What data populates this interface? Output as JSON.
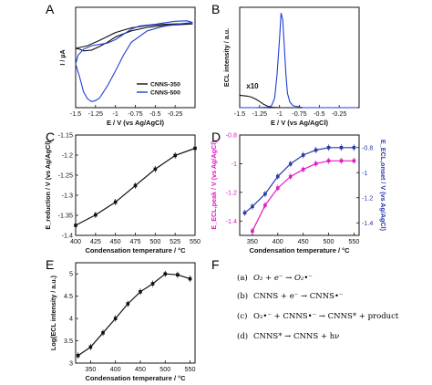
{
  "panels": {
    "A": {
      "letter": "A"
    },
    "B": {
      "letter": "B"
    },
    "C": {
      "letter": "C"
    },
    "D": {
      "letter": "D"
    },
    "E": {
      "letter": "E"
    },
    "F": {
      "letter": "F"
    }
  },
  "colors": {
    "black": "#111111",
    "blue": "#1f3fd6",
    "magenta": "#e01cc4",
    "navy": "#2b3aa8"
  },
  "chart_data": [
    {
      "id": "A",
      "type": "line",
      "xlabel": "E / V (vs Ag/AgCl)",
      "ylabel": "I / µA",
      "xlim": [
        -1.5,
        0
      ],
      "xticks": [
        "-1.5",
        "-1.25",
        "-1",
        "-0.75",
        "-0.5",
        "-0.25"
      ],
      "xtick_values": [
        -1.5,
        -1.25,
        -1.0,
        -0.75,
        -0.5,
        -0.25
      ],
      "grid": false,
      "legend_position": "bottom-right",
      "series": [
        {
          "name": "CNNS-350",
          "color": "#111111",
          "x": [
            -1.5,
            -1.45,
            -1.4,
            -1.3,
            -1.2,
            -1.1,
            -1.0,
            -0.8,
            -0.6,
            -0.4,
            -0.2,
            -0.03,
            -0.2,
            -0.4,
            -0.6,
            -0.8,
            -1.0,
            -1.2,
            -1.35,
            -1.45,
            -1.5
          ],
          "y": [
            -2.2,
            -2.3,
            -2.5,
            -2.4,
            -2.0,
            -1.5,
            -0.9,
            -0.2,
            0.2,
            0.4,
            0.5,
            0.6,
            0.62,
            0.55,
            0.4,
            0.15,
            -0.4,
            -1.3,
            -1.9,
            -2.1,
            -2.2
          ]
        },
        {
          "name": "CNNS-500",
          "color": "#1f3fd6",
          "x": [
            -1.5,
            -1.45,
            -1.4,
            -1.35,
            -1.3,
            -1.25,
            -1.2,
            -1.1,
            -1.0,
            -0.9,
            -0.8,
            -0.6,
            -0.4,
            -0.2,
            -0.03,
            -0.1,
            -0.25,
            -0.4,
            -0.5,
            -0.6,
            -0.7,
            -0.8,
            -0.9,
            -1.0,
            -1.1,
            -1.2,
            -1.3,
            -1.4,
            -1.47,
            -1.5
          ],
          "y": [
            -4.0,
            -5.5,
            -7.2,
            -8.0,
            -8.3,
            -8.2,
            -7.9,
            -6.5,
            -4.8,
            -3.0,
            -1.5,
            -0.2,
            0.3,
            0.6,
            0.75,
            0.95,
            0.9,
            0.7,
            0.55,
            0.45,
            0.35,
            0.0,
            -0.6,
            -1.2,
            -1.6,
            -1.75,
            -1.9,
            -2.3,
            -3.0,
            -4.0
          ]
        }
      ]
    },
    {
      "id": "B",
      "type": "line",
      "xlabel": "E / V (vs Ag/AgCl)",
      "ylabel": "ECL intensity / a.u.",
      "xlim": [
        -1.5,
        0
      ],
      "xticks": [
        "-1.5",
        "-1.25",
        "-1",
        "-0.75",
        "-0.5",
        "-0.25"
      ],
      "xtick_values": [
        -1.5,
        -1.25,
        -1.0,
        -0.75,
        -0.5,
        -0.25
      ],
      "ylim": [
        0,
        105
      ],
      "grid": false,
      "annotations": [
        {
          "text": "x10",
          "x": -1.34,
          "y": 20
        }
      ],
      "series": [
        {
          "name": "CNNS-350 (x10)",
          "color": "#111111",
          "x": [
            -1.5,
            -1.45,
            -1.4,
            -1.35,
            -1.3,
            -1.25,
            -1.2,
            -1.15,
            -1.1,
            -1.0,
            -0.9,
            -0.8
          ],
          "y": [
            13,
            12.5,
            12,
            11,
            9,
            6.5,
            3.5,
            1.5,
            0.5,
            0,
            0,
            0
          ]
        },
        {
          "name": "CNNS-500",
          "color": "#1f3fd6",
          "x": [
            -1.5,
            -1.3,
            -1.15,
            -1.1,
            -1.06,
            -1.03,
            -1.0,
            -0.98,
            -0.96,
            -0.94,
            -0.92,
            -0.9,
            -0.87,
            -0.83,
            -0.7,
            -0.5,
            -0.3,
            -0.1,
            -0.02
          ],
          "y": [
            0,
            0,
            0.5,
            2,
            10,
            35,
            72,
            99,
            92,
            65,
            35,
            15,
            6,
            2,
            0,
            0,
            0,
            0,
            0
          ]
        }
      ]
    },
    {
      "id": "C",
      "type": "line",
      "xlabel": "Condensation temperature / °C",
      "ylabel": "E_reduction / V (vs Ag/AgCl)",
      "xlim": [
        400,
        550
      ],
      "ylim": [
        -1.4,
        -1.15
      ],
      "xticks": [
        "400",
        "425",
        "450",
        "475",
        "500",
        "525",
        "550"
      ],
      "xtick_values": [
        400,
        425,
        450,
        475,
        500,
        525,
        550
      ],
      "yticks": [
        "-1.4",
        "-1.35",
        "-1.3",
        "-1.25",
        "-1.2",
        "-1.15"
      ],
      "ytick_values": [
        -1.4,
        -1.35,
        -1.3,
        -1.25,
        -1.2,
        -1.15
      ],
      "grid": false,
      "series": [
        {
          "name": "E_reduction",
          "color": "#111111",
          "x": [
            400,
            425,
            450,
            475,
            500,
            525,
            550
          ],
          "y": [
            -1.375,
            -1.349,
            -1.317,
            -1.276,
            -1.235,
            -1.201,
            -1.183
          ]
        }
      ]
    },
    {
      "id": "D",
      "type": "line",
      "xlabel": "Condensation temperature / °C",
      "ylabel": "E_ECL,peak / V (vs Ag/AgCl)",
      "ylabel_right": "E_ECL,onset / V (vs Ag/AgCl)",
      "xlim": [
        325,
        560
      ],
      "ylim": [
        -1.5,
        -0.8
      ],
      "xticks": [
        "350",
        "400",
        "450",
        "500",
        "550"
      ],
      "xtick_values": [
        350,
        400,
        450,
        500,
        550
      ],
      "yticks": [
        "-0.8",
        "-1",
        "-1.2",
        "-1.4"
      ],
      "ytick_values": [
        -0.8,
        -1.0,
        -1.2,
        -1.4
      ],
      "ylim_right": [
        -1.5,
        -0.7
      ],
      "yticks_right": [
        "-0.8",
        "-1",
        "-1.2",
        "-1.4"
      ],
      "ytick_values_right": [
        -0.8,
        -1.0,
        -1.2,
        -1.4
      ],
      "grid": false,
      "series": [
        {
          "name": "E_ECL,peak",
          "axis": "left",
          "color": "#e01cc4",
          "x": [
            350,
            375,
            400,
            425,
            450,
            475,
            500,
            525,
            550
          ],
          "y": [
            -1.47,
            -1.29,
            -1.17,
            -1.09,
            -1.04,
            -1.0,
            -0.98,
            -0.98,
            -0.98
          ]
        },
        {
          "name": "E_ECL,onset",
          "axis": "right",
          "color": "#2b3aa8",
          "x": [
            335,
            350,
            375,
            400,
            425,
            450,
            475,
            500,
            525,
            550
          ],
          "y": [
            -1.32,
            -1.27,
            -1.17,
            -1.03,
            -0.93,
            -0.86,
            -0.82,
            -0.8,
            -0.8,
            -0.8
          ]
        }
      ]
    },
    {
      "id": "E",
      "type": "line",
      "xlabel": "Condensation temperature / °C",
      "ylabel": "Log(ECL intensity / a.u.)",
      "xlim": [
        320,
        560
      ],
      "ylim": [
        3.0,
        5.25
      ],
      "xticks": [
        "350",
        "400",
        "450",
        "500",
        "550"
      ],
      "xtick_values": [
        350,
        400,
        450,
        500,
        550
      ],
      "yticks": [
        "3",
        "3.5",
        "4",
        "4.5",
        "5"
      ],
      "ytick_values": [
        3,
        3.5,
        4,
        4.5,
        5
      ],
      "grid": false,
      "series": [
        {
          "name": "Log(ECL intensity)",
          "color": "#111111",
          "x": [
            325,
            350,
            375,
            400,
            425,
            450,
            475,
            500,
            525,
            550
          ],
          "y": [
            3.17,
            3.36,
            3.68,
            4.0,
            4.33,
            4.6,
            4.78,
            5.0,
            4.98,
            4.89
          ]
        }
      ]
    }
  ],
  "reactions": [
    {
      "label": "(a)",
      "equation": "O₂ + e⁻ → O₂•⁻"
    },
    {
      "label": "(b)",
      "equation": "CNNS + e⁻ → CNNS•⁻"
    },
    {
      "label": "(c)",
      "equation": "O₂•⁻ + CNNS•⁻ → CNNS* + product"
    },
    {
      "label": "(d)",
      "equation": "CNNS* → CNNS + hν"
    }
  ]
}
